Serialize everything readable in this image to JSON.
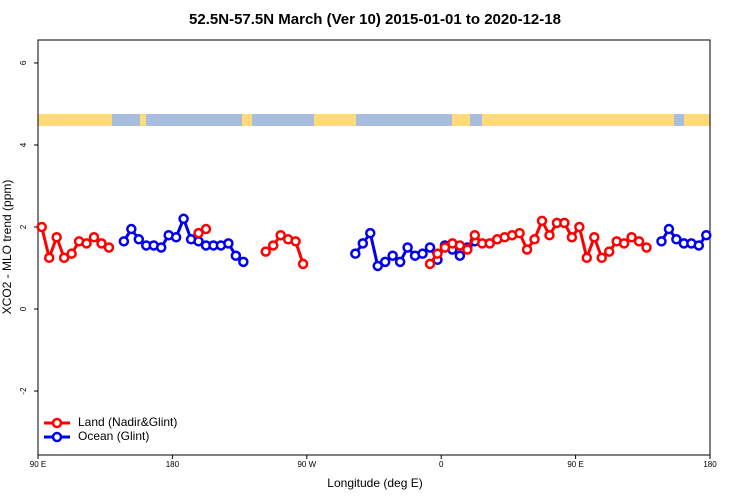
{
  "chart_data": {
    "type": "line",
    "title": "52.5N-57.5N March (Ver 10)   2015-01-01 to 2020-12-18",
    "xlabel": "Longitude (deg E)",
    "ylabel": "XCO2 - MLO trend (ppm)",
    "xlim": [
      90,
      540
    ],
    "xticks": [
      {
        "value": 90,
        "label": "90 E"
      },
      180,
      {
        "value": 270,
        "label": "90 W"
      },
      {
        "value": 360,
        "label": "0"
      },
      {
        "value": 450,
        "label": "90 E"
      },
      {
        "value": 540,
        "label": "180"
      }
    ],
    "ylim": [
      -3.56,
      6.56
    ],
    "yticks": [
      -2,
      0,
      2,
      4,
      6
    ],
    "legend": "bottom-left",
    "series": [
      {
        "name": "Land (Nadir&Glint)",
        "color": "#ff0000",
        "x": [
          92.5,
          97.5,
          102.5,
          107.5,
          112.5,
          117.5,
          122.5,
          127.5,
          132.5,
          137.5,
          null,
          197.5,
          202.5,
          null,
          242.5,
          247.5,
          252.5,
          257.5,
          262.5,
          267.5,
          null,
          352.5,
          357.5,
          362.5,
          367.5,
          372.5,
          377.5,
          382.5,
          387.5,
          392.5,
          397.5,
          402.5,
          407.5,
          412.5,
          417.5,
          422.5,
          427.5,
          432.5,
          437.5,
          442.5,
          447.5,
          452.5,
          457.5,
          462.5,
          467.5,
          472.5,
          477.5,
          482.5,
          487.5,
          492.5,
          497.5
        ],
        "values": [
          2.0,
          1.25,
          1.75,
          1.25,
          1.35,
          1.65,
          1.6,
          1.75,
          1.6,
          1.5,
          null,
          1.85,
          1.95,
          null,
          1.4,
          1.55,
          1.8,
          1.7,
          1.65,
          1.1,
          null,
          1.1,
          1.35,
          1.5,
          1.6,
          1.55,
          1.45,
          1.8,
          1.6,
          1.6,
          1.7,
          1.75,
          1.8,
          1.85,
          1.45,
          1.7,
          2.15,
          1.8,
          2.1,
          2.1,
          1.75,
          2.0,
          1.25,
          1.75,
          1.25,
          1.4,
          1.65,
          1.6,
          1.75,
          1.65,
          1.5
        ]
      },
      {
        "name": "Ocean (Glint)",
        "color": "#0000ee",
        "x": [
          147.5,
          152.5,
          157.5,
          162.5,
          167.5,
          172.5,
          177.5,
          182.5,
          187.5,
          192.5,
          197.5,
          202.5,
          207.5,
          212.5,
          217.5,
          222.5,
          227.5,
          null,
          302.5,
          307.5,
          312.5,
          317.5,
          322.5,
          327.5,
          332.5,
          337.5,
          342.5,
          347.5,
          352.5,
          357.5,
          362.5,
          367.5,
          372.5,
          377.5,
          382.5,
          null,
          507.5,
          512.5,
          517.5,
          522.5,
          527.5,
          532.5,
          537.5
        ],
        "values": [
          1.65,
          1.95,
          1.7,
          1.55,
          1.55,
          1.5,
          1.8,
          1.75,
          2.2,
          1.7,
          1.65,
          1.55,
          1.55,
          1.55,
          1.6,
          1.3,
          1.15,
          null,
          1.35,
          1.6,
          1.85,
          1.05,
          1.15,
          1.3,
          1.15,
          1.5,
          1.3,
          1.35,
          1.5,
          1.2,
          1.55,
          1.45,
          1.3,
          1.5,
          1.65,
          null,
          1.65,
          1.95,
          1.7,
          1.6,
          1.6,
          1.55,
          1.8
        ]
      }
    ]
  }
}
